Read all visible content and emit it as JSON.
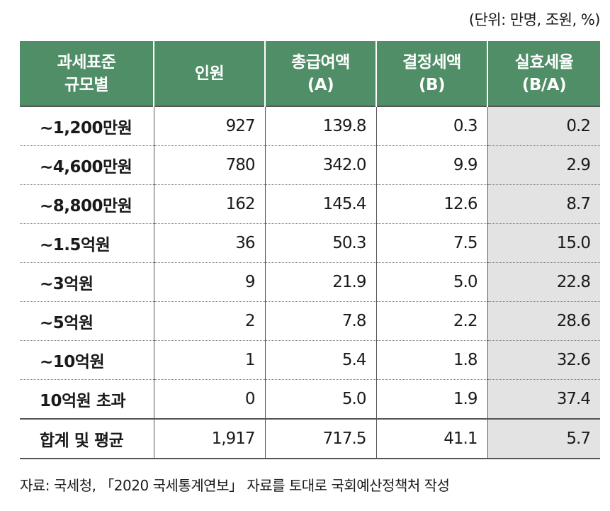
{
  "unit_note": "(단위: 만명, 조원, %)",
  "table": {
    "headers": [
      [
        "과세표준",
        "규모별"
      ],
      [
        "인원"
      ],
      [
        "총급여액",
        "(A)"
      ],
      [
        "결정세액",
        "(B)"
      ],
      [
        "실효세율",
        "(B/A)"
      ]
    ],
    "rows": [
      [
        "~1,200만원",
        "927",
        "139.8",
        "0.3",
        "0.2"
      ],
      [
        "~4,600만원",
        "780",
        "342.0",
        "9.9",
        "2.9"
      ],
      [
        "~8,800만원",
        "162",
        "145.4",
        "12.6",
        "8.7"
      ],
      [
        "~1.5억원",
        "36",
        "50.3",
        "7.5",
        "15.0"
      ],
      [
        "~3억원",
        "9",
        "21.9",
        "5.0",
        "22.8"
      ],
      [
        "~5억원",
        "2",
        "7.8",
        "2.2",
        "28.6"
      ],
      [
        "~10억원",
        "1",
        "5.4",
        "1.8",
        "32.6"
      ],
      [
        "10억원 초과",
        "0",
        "5.0",
        "1.9",
        "37.4"
      ]
    ],
    "total": [
      "합계 및 평균",
      "1,917",
      "717.5",
      "41.1",
      "5.7"
    ]
  },
  "source_note": "자료: 국세청, 「2020 국세통계연보」 자료를 토대로 국회예산정책처 작성",
  "colors": {
    "header_bg": "#4f8e66",
    "header_text": "#ffffff",
    "shaded_column": "#e3e3e3"
  }
}
